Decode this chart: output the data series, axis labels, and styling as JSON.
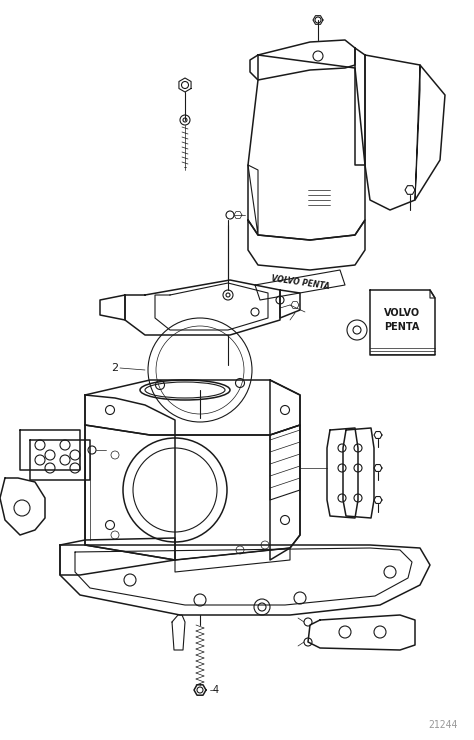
{
  "background_color": "#ffffff",
  "line_color": "#1a1a1a",
  "fig_width": 4.74,
  "fig_height": 7.4,
  "dpi": 100,
  "watermark_text": "21244",
  "label_2": "2",
  "label_4": "4",
  "volvo_penta_badge": "VOLVO PENTA",
  "volvo_penta_box": "VOLVO\nPENTA"
}
